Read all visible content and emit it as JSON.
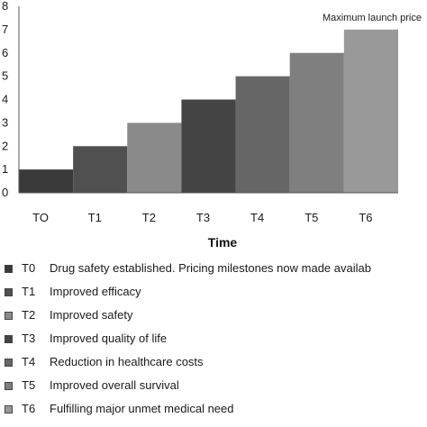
{
  "chart_data": {
    "type": "bar",
    "title": "",
    "xlabel": "Time",
    "ylabel": "",
    "categories": [
      "TO",
      "T1",
      "T2",
      "T3",
      "T4",
      "T5",
      "T6"
    ],
    "values": [
      1,
      2,
      3,
      4,
      5,
      6,
      7
    ],
    "ylim": [
      0,
      8
    ],
    "y_ticks": [
      "0",
      "1",
      "2",
      "3",
      "4",
      "5",
      "6",
      "7",
      "8"
    ],
    "annotation": "Maximum launch price",
    "grid": false,
    "bar_colors": [
      "#3a3a3a",
      "#505050",
      "#8a8a8a",
      "#444444",
      "#666666",
      "#7f7f7f",
      "#999999"
    ],
    "legend_position": "bottom",
    "legend": [
      {
        "code": "T0",
        "label": "Drug safety established. Pricing milestones now made availab"
      },
      {
        "code": "T1",
        "label": "Improved efficacy"
      },
      {
        "code": "T2",
        "label": "Improved safety"
      },
      {
        "code": "T3",
        "label": "Improved quality of life"
      },
      {
        "code": "T4",
        "label": "Reduction in healthcare costs"
      },
      {
        "code": "T5",
        "label": "Improved overall survival"
      },
      {
        "code": "T6",
        "label": "Fulfilling major unmet medical need"
      }
    ]
  }
}
